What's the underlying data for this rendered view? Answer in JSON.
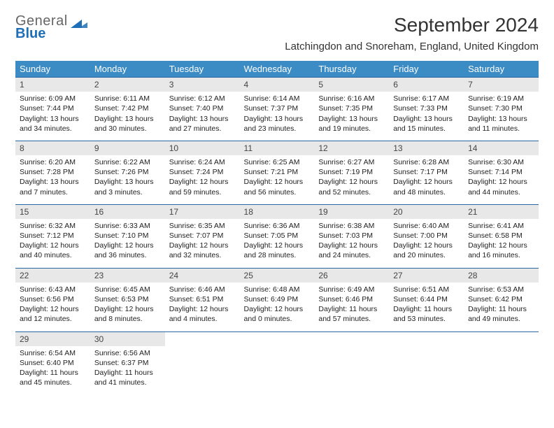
{
  "logo": {
    "line1": "General",
    "line2": "Blue"
  },
  "title": "September 2024",
  "location": "Latchingdon and Snoreham, England, United Kingdom",
  "colors": {
    "header_blue": "#3b8bc4",
    "accent_blue": "#2767a3",
    "row_gray": "#e8e8e8",
    "logo_blue": "#1e6fb5"
  },
  "weekdays": [
    "Sunday",
    "Monday",
    "Tuesday",
    "Wednesday",
    "Thursday",
    "Friday",
    "Saturday"
  ],
  "weeks": [
    [
      {
        "n": "1",
        "sr": "Sunrise: 6:09 AM",
        "ss": "Sunset: 7:44 PM",
        "d1": "Daylight: 13 hours",
        "d2": "and 34 minutes."
      },
      {
        "n": "2",
        "sr": "Sunrise: 6:11 AM",
        "ss": "Sunset: 7:42 PM",
        "d1": "Daylight: 13 hours",
        "d2": "and 30 minutes."
      },
      {
        "n": "3",
        "sr": "Sunrise: 6:12 AM",
        "ss": "Sunset: 7:40 PM",
        "d1": "Daylight: 13 hours",
        "d2": "and 27 minutes."
      },
      {
        "n": "4",
        "sr": "Sunrise: 6:14 AM",
        "ss": "Sunset: 7:37 PM",
        "d1": "Daylight: 13 hours",
        "d2": "and 23 minutes."
      },
      {
        "n": "5",
        "sr": "Sunrise: 6:16 AM",
        "ss": "Sunset: 7:35 PM",
        "d1": "Daylight: 13 hours",
        "d2": "and 19 minutes."
      },
      {
        "n": "6",
        "sr": "Sunrise: 6:17 AM",
        "ss": "Sunset: 7:33 PM",
        "d1": "Daylight: 13 hours",
        "d2": "and 15 minutes."
      },
      {
        "n": "7",
        "sr": "Sunrise: 6:19 AM",
        "ss": "Sunset: 7:30 PM",
        "d1": "Daylight: 13 hours",
        "d2": "and 11 minutes."
      }
    ],
    [
      {
        "n": "8",
        "sr": "Sunrise: 6:20 AM",
        "ss": "Sunset: 7:28 PM",
        "d1": "Daylight: 13 hours",
        "d2": "and 7 minutes."
      },
      {
        "n": "9",
        "sr": "Sunrise: 6:22 AM",
        "ss": "Sunset: 7:26 PM",
        "d1": "Daylight: 13 hours",
        "d2": "and 3 minutes."
      },
      {
        "n": "10",
        "sr": "Sunrise: 6:24 AM",
        "ss": "Sunset: 7:24 PM",
        "d1": "Daylight: 12 hours",
        "d2": "and 59 minutes."
      },
      {
        "n": "11",
        "sr": "Sunrise: 6:25 AM",
        "ss": "Sunset: 7:21 PM",
        "d1": "Daylight: 12 hours",
        "d2": "and 56 minutes."
      },
      {
        "n": "12",
        "sr": "Sunrise: 6:27 AM",
        "ss": "Sunset: 7:19 PM",
        "d1": "Daylight: 12 hours",
        "d2": "and 52 minutes."
      },
      {
        "n": "13",
        "sr": "Sunrise: 6:28 AM",
        "ss": "Sunset: 7:17 PM",
        "d1": "Daylight: 12 hours",
        "d2": "and 48 minutes."
      },
      {
        "n": "14",
        "sr": "Sunrise: 6:30 AM",
        "ss": "Sunset: 7:14 PM",
        "d1": "Daylight: 12 hours",
        "d2": "and 44 minutes."
      }
    ],
    [
      {
        "n": "15",
        "sr": "Sunrise: 6:32 AM",
        "ss": "Sunset: 7:12 PM",
        "d1": "Daylight: 12 hours",
        "d2": "and 40 minutes."
      },
      {
        "n": "16",
        "sr": "Sunrise: 6:33 AM",
        "ss": "Sunset: 7:10 PM",
        "d1": "Daylight: 12 hours",
        "d2": "and 36 minutes."
      },
      {
        "n": "17",
        "sr": "Sunrise: 6:35 AM",
        "ss": "Sunset: 7:07 PM",
        "d1": "Daylight: 12 hours",
        "d2": "and 32 minutes."
      },
      {
        "n": "18",
        "sr": "Sunrise: 6:36 AM",
        "ss": "Sunset: 7:05 PM",
        "d1": "Daylight: 12 hours",
        "d2": "and 28 minutes."
      },
      {
        "n": "19",
        "sr": "Sunrise: 6:38 AM",
        "ss": "Sunset: 7:03 PM",
        "d1": "Daylight: 12 hours",
        "d2": "and 24 minutes."
      },
      {
        "n": "20",
        "sr": "Sunrise: 6:40 AM",
        "ss": "Sunset: 7:00 PM",
        "d1": "Daylight: 12 hours",
        "d2": "and 20 minutes."
      },
      {
        "n": "21",
        "sr": "Sunrise: 6:41 AM",
        "ss": "Sunset: 6:58 PM",
        "d1": "Daylight: 12 hours",
        "d2": "and 16 minutes."
      }
    ],
    [
      {
        "n": "22",
        "sr": "Sunrise: 6:43 AM",
        "ss": "Sunset: 6:56 PM",
        "d1": "Daylight: 12 hours",
        "d2": "and 12 minutes."
      },
      {
        "n": "23",
        "sr": "Sunrise: 6:45 AM",
        "ss": "Sunset: 6:53 PM",
        "d1": "Daylight: 12 hours",
        "d2": "and 8 minutes."
      },
      {
        "n": "24",
        "sr": "Sunrise: 6:46 AM",
        "ss": "Sunset: 6:51 PM",
        "d1": "Daylight: 12 hours",
        "d2": "and 4 minutes."
      },
      {
        "n": "25",
        "sr": "Sunrise: 6:48 AM",
        "ss": "Sunset: 6:49 PM",
        "d1": "Daylight: 12 hours",
        "d2": "and 0 minutes."
      },
      {
        "n": "26",
        "sr": "Sunrise: 6:49 AM",
        "ss": "Sunset: 6:46 PM",
        "d1": "Daylight: 11 hours",
        "d2": "and 57 minutes."
      },
      {
        "n": "27",
        "sr": "Sunrise: 6:51 AM",
        "ss": "Sunset: 6:44 PM",
        "d1": "Daylight: 11 hours",
        "d2": "and 53 minutes."
      },
      {
        "n": "28",
        "sr": "Sunrise: 6:53 AM",
        "ss": "Sunset: 6:42 PM",
        "d1": "Daylight: 11 hours",
        "d2": "and 49 minutes."
      }
    ],
    [
      {
        "n": "29",
        "sr": "Sunrise: 6:54 AM",
        "ss": "Sunset: 6:40 PM",
        "d1": "Daylight: 11 hours",
        "d2": "and 45 minutes."
      },
      {
        "n": "30",
        "sr": "Sunrise: 6:56 AM",
        "ss": "Sunset: 6:37 PM",
        "d1": "Daylight: 11 hours",
        "d2": "and 41 minutes."
      },
      null,
      null,
      null,
      null,
      null
    ]
  ]
}
